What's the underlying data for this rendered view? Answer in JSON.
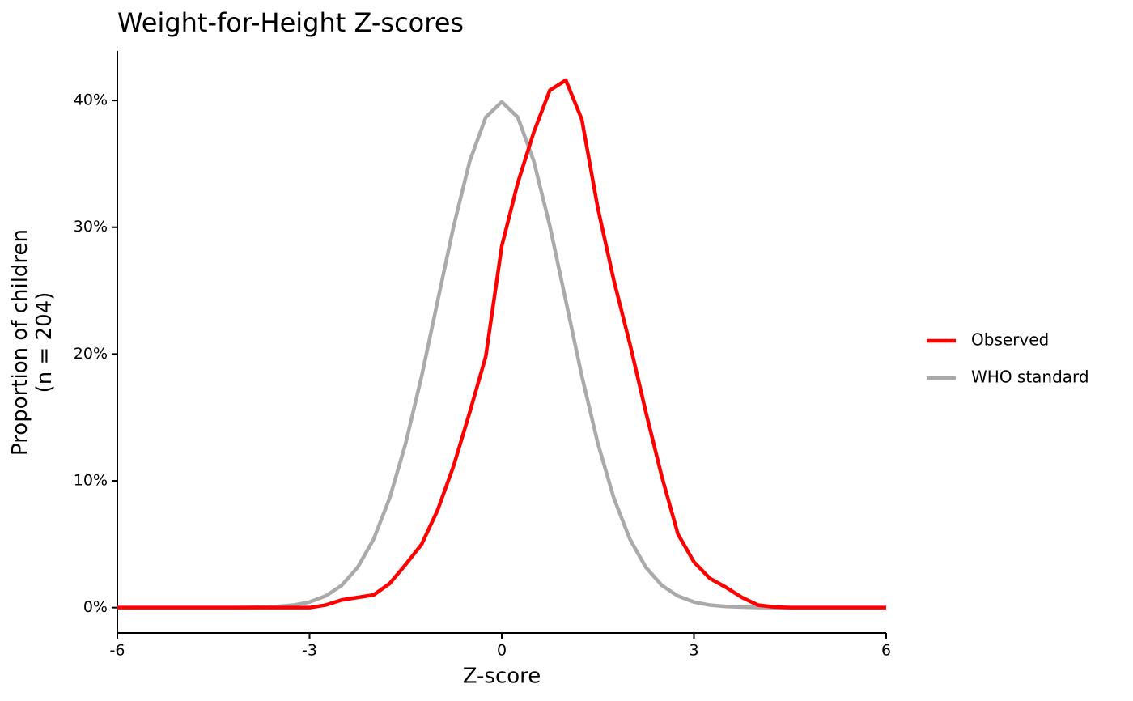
{
  "chart_data": {
    "type": "line",
    "title": "Weight-for-Height Z-scores",
    "x_label": "Z-score",
    "y_label": "Proportion of children\n(n = 204)",
    "x": [
      -6,
      -5.75,
      -5.5,
      -5.25,
      -5,
      -4.75,
      -4.5,
      -4.25,
      -4,
      -3.75,
      -3.5,
      -3.25,
      -3,
      -2.75,
      -2.5,
      -2.25,
      -2,
      -1.75,
      -1.5,
      -1.25,
      -1,
      -0.75,
      -0.5,
      -0.25,
      0,
      0.25,
      0.5,
      0.75,
      1,
      1.25,
      1.5,
      1.75,
      2,
      2.25,
      2.5,
      2.75,
      3,
      3.25,
      3.5,
      3.75,
      4,
      4.25,
      4.5,
      4.75,
      5,
      5.25,
      5.5,
      5.75,
      6
    ],
    "series": [
      {
        "name": "Observed",
        "color": "#ff0000",
        "values": [
          0,
          0,
          0,
          0,
          0,
          0,
          0,
          0,
          0,
          0,
          0,
          0,
          0,
          0.2,
          0.6,
          0.8,
          1.0,
          1.9,
          3.4,
          5.0,
          7.7,
          11.2,
          15.4,
          19.8,
          28.5,
          33.5,
          37.5,
          40.8,
          41.6,
          38.5,
          31.5,
          25.8,
          20.8,
          15.4,
          10.3,
          5.8,
          3.6,
          2.3,
          1.6,
          0.8,
          0.2,
          0.05,
          0,
          0,
          0,
          0,
          0,
          0,
          0
        ]
      },
      {
        "name": "WHO standard",
        "color": "#aaaaaa",
        "values": [
          0,
          0,
          0,
          0,
          0,
          0,
          0,
          0,
          0.01,
          0.04,
          0.09,
          0.2,
          0.44,
          0.91,
          1.75,
          3.17,
          5.4,
          8.63,
          12.95,
          18.26,
          24.2,
          30.11,
          35.21,
          38.67,
          39.89,
          38.67,
          35.21,
          30.11,
          24.2,
          18.26,
          12.95,
          8.63,
          5.4,
          3.17,
          1.75,
          0.91,
          0.44,
          0.2,
          0.09,
          0.04,
          0.01,
          0,
          0,
          0,
          0,
          0,
          0,
          0,
          0
        ]
      }
    ],
    "xlim": [
      -6,
      6
    ],
    "xticks": [
      -6,
      -3,
      0,
      3,
      6
    ],
    "ylim": [
      -2,
      43.9
    ],
    "yticks": [
      {
        "value": 0,
        "label": "0%"
      },
      {
        "value": 10,
        "label": "10%"
      },
      {
        "value": 20,
        "label": "20%"
      },
      {
        "value": 30,
        "label": "30%"
      },
      {
        "value": 40,
        "label": "40%"
      }
    ],
    "legend": "right"
  }
}
